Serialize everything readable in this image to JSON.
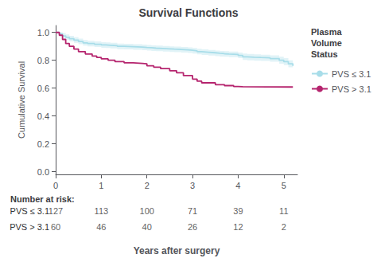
{
  "chart_data": {
    "type": "line",
    "title": "Survival Functions",
    "xlabel": "Years after surgery",
    "ylabel": "Cumulative Survival",
    "legend_title": "Plasma\nVolume\nStatus",
    "legend": "right",
    "grid": false,
    "xlim": [
      0,
      5.3
    ],
    "xticks": [
      0,
      1,
      2,
      3,
      4,
      5
    ],
    "ylim": [
      -0.02,
      1.05
    ],
    "yticks": [
      {
        "value": 0.0,
        "label": "0.0"
      },
      0.2,
      0.4,
      0.6,
      0.8,
      {
        "value": 1.0,
        "label": "1.0"
      }
    ],
    "series": [
      {
        "name": "PVS ≤ 3.1",
        "color": "#a8dde9",
        "line_style": "steps-post",
        "x": [
          0,
          0.08,
          0.15,
          0.22,
          0.3,
          0.4,
          0.5,
          0.6,
          0.7,
          0.85,
          1.0,
          1.1,
          1.2,
          1.35,
          1.5,
          1.7,
          1.9,
          2.0,
          2.1,
          2.2,
          2.35,
          2.5,
          2.6,
          2.75,
          2.9,
          3.0,
          3.1,
          3.2,
          3.35,
          3.5,
          3.6,
          3.7,
          3.8,
          4.0,
          4.1,
          4.2,
          4.35,
          4.5,
          4.7,
          4.9,
          5.0,
          5.1,
          5.2
        ],
        "values": [
          1.0,
          0.99,
          0.975,
          0.965,
          0.955,
          0.945,
          0.935,
          0.925,
          0.92,
          0.915,
          0.91,
          0.908,
          0.905,
          0.9,
          0.898,
          0.895,
          0.892,
          0.89,
          0.887,
          0.885,
          0.882,
          0.88,
          0.878,
          0.875,
          0.872,
          0.868,
          0.862,
          0.858,
          0.854,
          0.85,
          0.847,
          0.845,
          0.842,
          0.835,
          0.825,
          0.822,
          0.82,
          0.818,
          0.812,
          0.8,
          0.79,
          0.775,
          0.76
        ],
        "ci_upper": [
          1.0,
          1.0,
          0.995,
          0.985,
          0.975,
          0.965,
          0.955,
          0.945,
          0.94,
          0.935,
          0.93,
          0.928,
          0.925,
          0.92,
          0.918,
          0.915,
          0.912,
          0.91,
          0.907,
          0.905,
          0.902,
          0.9,
          0.898,
          0.895,
          0.892,
          0.888,
          0.882,
          0.878,
          0.874,
          0.87,
          0.867,
          0.865,
          0.862,
          0.855,
          0.848,
          0.845,
          0.843,
          0.84,
          0.835,
          0.825,
          0.815,
          0.8,
          0.785
        ],
        "ci_lower": [
          1.0,
          0.98,
          0.96,
          0.945,
          0.935,
          0.925,
          0.915,
          0.905,
          0.9,
          0.895,
          0.89,
          0.888,
          0.885,
          0.88,
          0.878,
          0.875,
          0.872,
          0.87,
          0.867,
          0.865,
          0.862,
          0.86,
          0.858,
          0.855,
          0.852,
          0.848,
          0.842,
          0.838,
          0.834,
          0.83,
          0.827,
          0.825,
          0.822,
          0.815,
          0.802,
          0.799,
          0.797,
          0.796,
          0.789,
          0.775,
          0.765,
          0.75,
          0.735
        ]
      },
      {
        "name": "PVS > 3.1",
        "color": "#b5246e",
        "line_style": "steps-post",
        "x": [
          0,
          0.08,
          0.15,
          0.22,
          0.3,
          0.4,
          0.5,
          0.65,
          0.8,
          0.9,
          1.0,
          1.15,
          1.3,
          1.5,
          1.7,
          1.9,
          2.0,
          2.15,
          2.3,
          2.5,
          2.65,
          2.8,
          3.0,
          3.1,
          3.2,
          3.5,
          3.7,
          3.9,
          4.0,
          4.1,
          5.2
        ],
        "values": [
          1.0,
          0.98,
          0.95,
          0.92,
          0.9,
          0.88,
          0.862,
          0.845,
          0.83,
          0.82,
          0.81,
          0.8,
          0.79,
          0.782,
          0.778,
          0.775,
          0.76,
          0.75,
          0.74,
          0.725,
          0.71,
          0.69,
          0.665,
          0.65,
          0.638,
          0.625,
          0.618,
          0.612,
          0.61,
          0.608,
          0.61
        ]
      }
    ],
    "risk_table": {
      "title": "Number at risk:",
      "times": [
        0,
        1,
        2,
        3,
        4,
        5
      ],
      "rows": [
        {
          "name": "PVS ≤ 3.1",
          "values": [
            127,
            113,
            100,
            71,
            39,
            11
          ]
        },
        {
          "name": "PVS > 3.1",
          "values": [
            60,
            46,
            40,
            26,
            12,
            2
          ]
        }
      ]
    }
  }
}
